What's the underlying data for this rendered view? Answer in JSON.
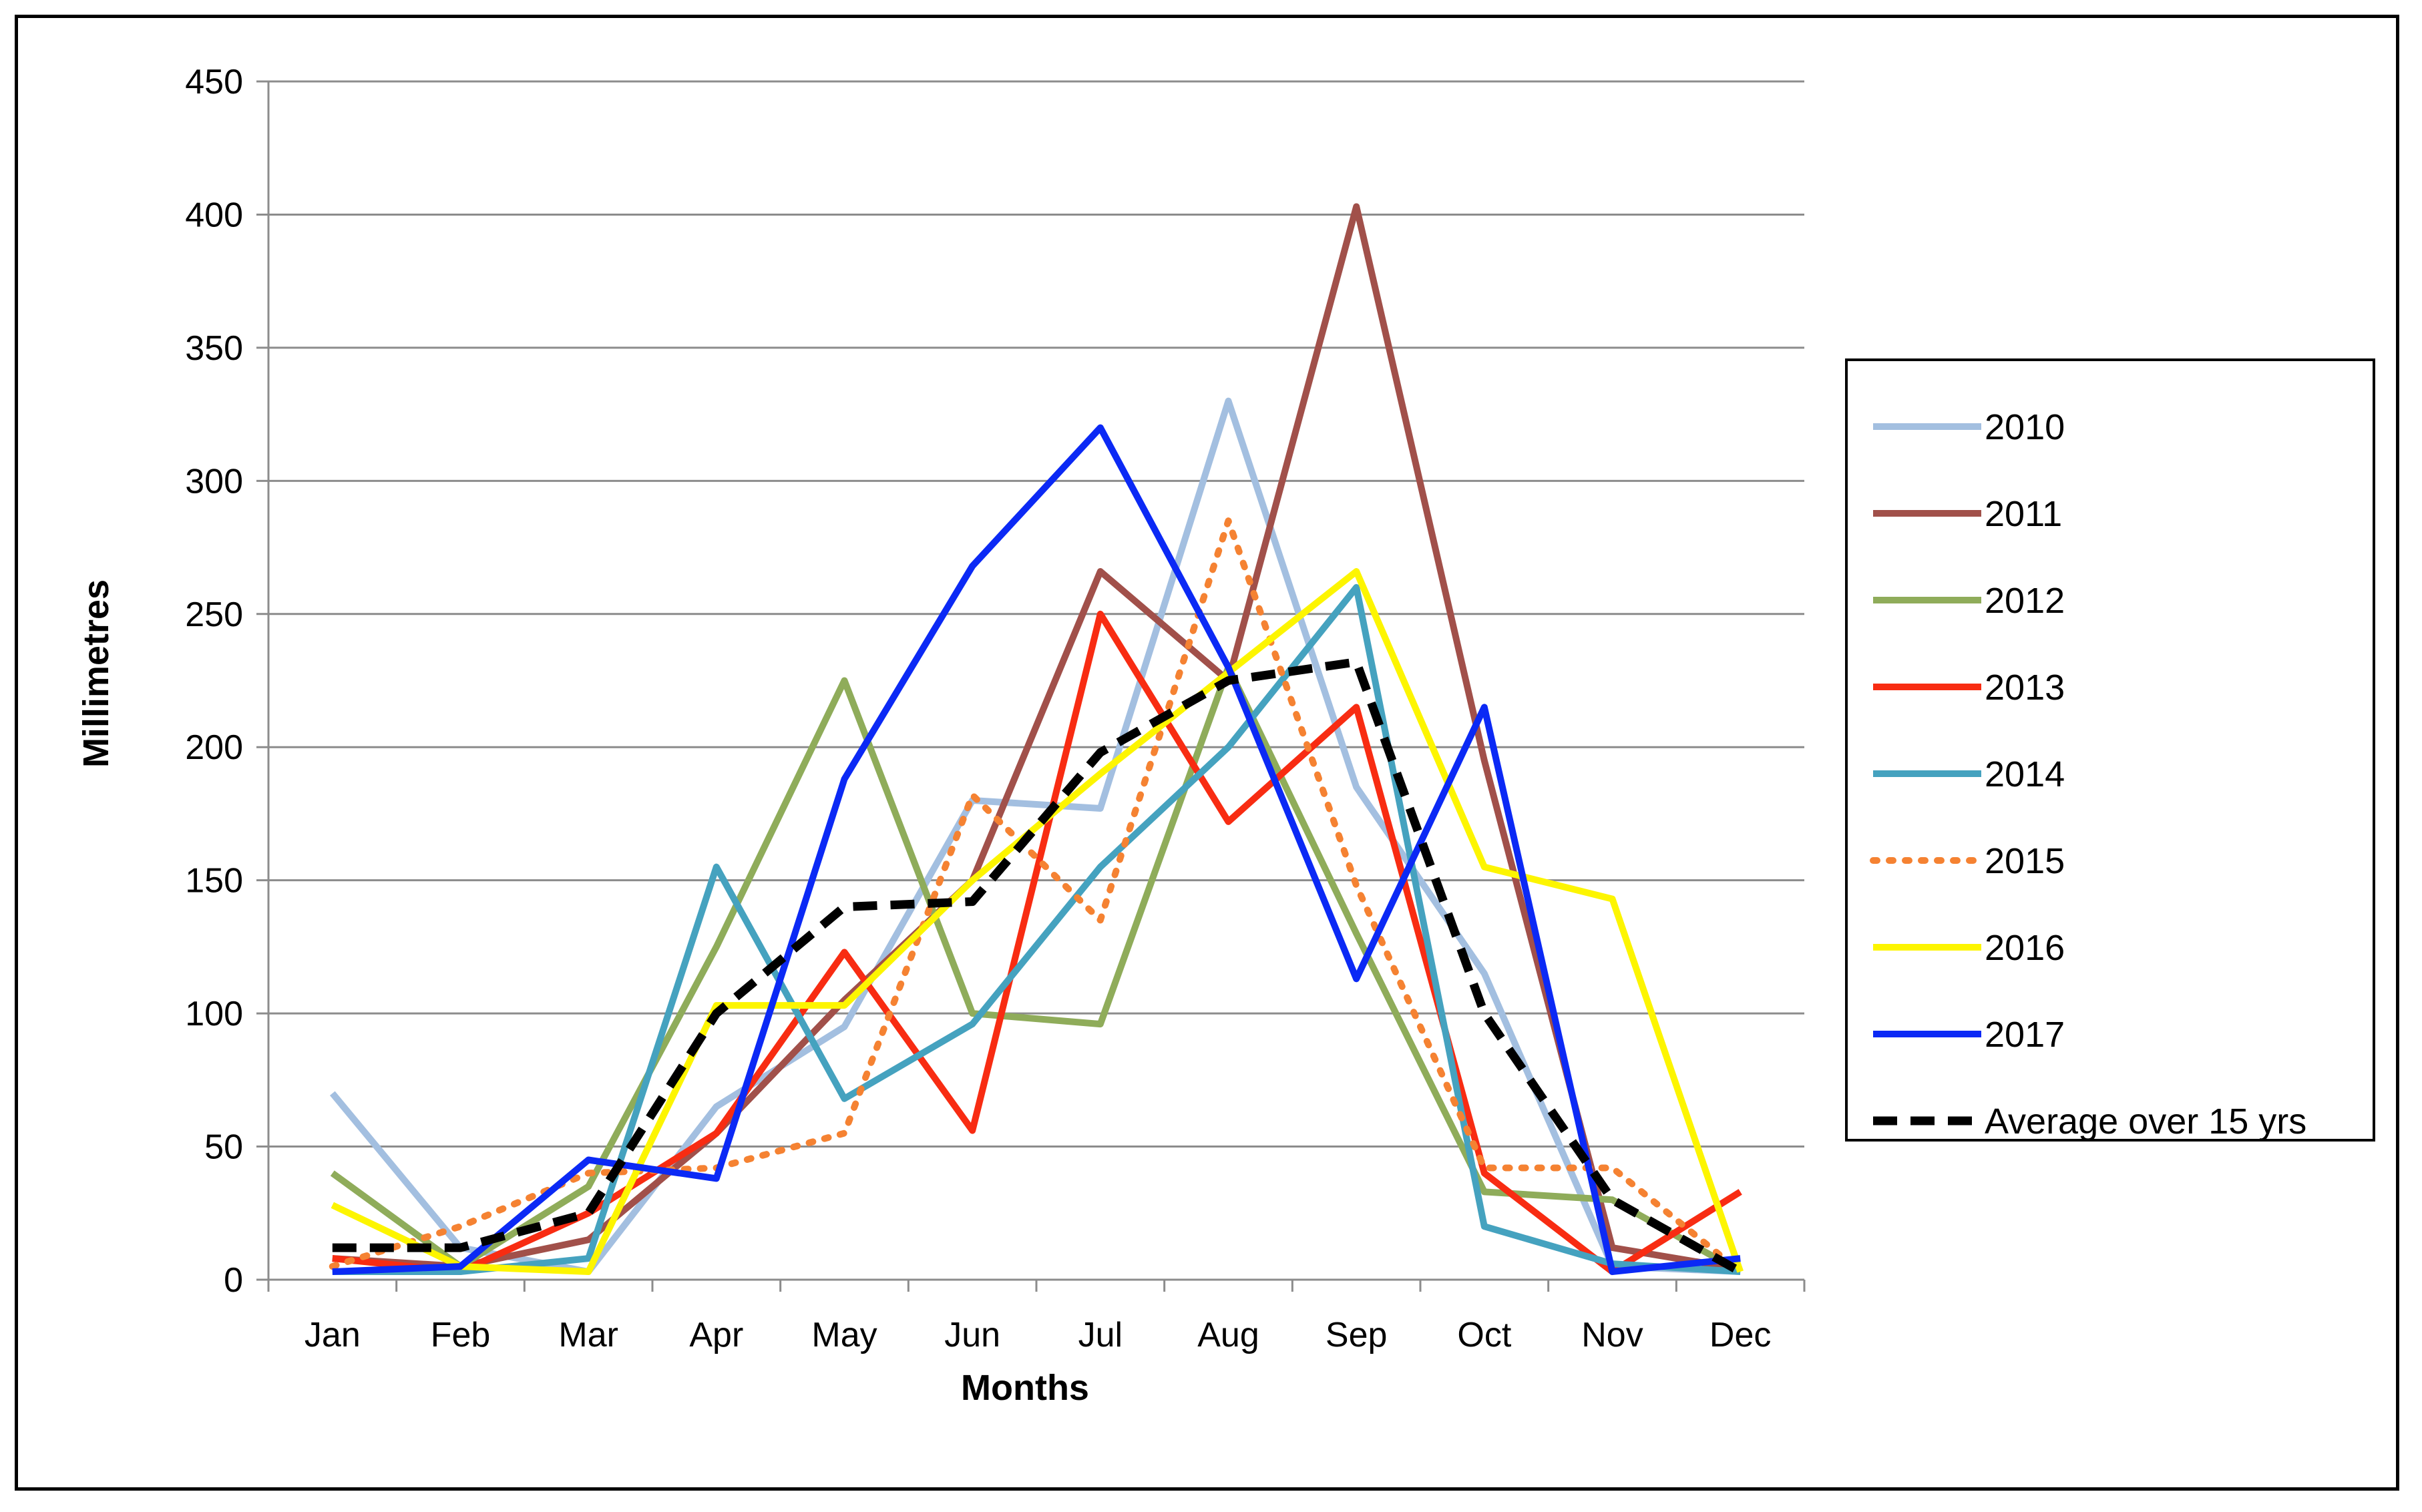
{
  "chart_data": {
    "type": "line",
    "title": "",
    "xlabel": "Months",
    "ylabel": "Millimetres",
    "ylim": [
      0,
      450
    ],
    "yticks": [
      0,
      50,
      100,
      150,
      200,
      250,
      300,
      350,
      400,
      450
    ],
    "grid": true,
    "legend_position": "right",
    "categories": [
      "Jan",
      "Feb",
      "Mar",
      "Apr",
      "May",
      "Jun",
      "Jul",
      "Aug",
      "Sep",
      "Oct",
      "Nov",
      "Dec"
    ],
    "series": [
      {
        "name": "2010",
        "color": "#a3bfe0",
        "style": "solid",
        "values": [
          70,
          12,
          3,
          65,
          95,
          180,
          177,
          330,
          185,
          115,
          5,
          3
        ]
      },
      {
        "name": "2011",
        "color": "#a1504a",
        "style": "solid",
        "values": [
          8,
          5,
          15,
          55,
          105,
          150,
          266,
          225,
          403,
          195,
          12,
          4
        ]
      },
      {
        "name": "2012",
        "color": "#8fac5a",
        "style": "solid",
        "values": [
          40,
          5,
          35,
          125,
          225,
          100,
          96,
          230,
          130,
          33,
          30,
          3
        ]
      },
      {
        "name": "2013",
        "color": "#f82c12",
        "style": "solid",
        "values": [
          8,
          3,
          25,
          55,
          123,
          56,
          250,
          172,
          215,
          40,
          3,
          33
        ]
      },
      {
        "name": "2014",
        "color": "#45a2bf",
        "style": "solid",
        "values": [
          3,
          3,
          8,
          155,
          68,
          96,
          155,
          200,
          260,
          20,
          6,
          3
        ]
      },
      {
        "name": "2015",
        "color": "#f58232",
        "style": "dotted",
        "values": [
          5,
          20,
          40,
          42,
          55,
          182,
          135,
          285,
          148,
          42,
          42,
          3
        ]
      },
      {
        "name": "2016",
        "color": "#fdf500",
        "style": "solid",
        "values": [
          28,
          5,
          3,
          103,
          103,
          150,
          190,
          228,
          266,
          155,
          143,
          3
        ]
      },
      {
        "name": "2017",
        "color": "#0b29f5",
        "style": "solid",
        "values": [
          3,
          5,
          45,
          38,
          188,
          268,
          320,
          230,
          113,
          215,
          3,
          8
        ]
      },
      {
        "name": "Average over 15 yrs",
        "color": "#000000",
        "style": "dashed",
        "values": [
          12,
          12,
          25,
          100,
          140,
          142,
          198,
          225,
          232,
          100,
          30,
          3
        ]
      }
    ]
  }
}
